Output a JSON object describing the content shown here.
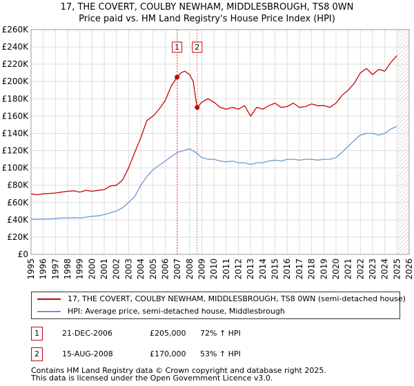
{
  "title": {
    "line1": "17, THE COVERT, COULBY NEWHAM, MIDDLESBROUGH, TS8 0WN",
    "line2": "Price paid vs. HM Land Registry's House Price Index (HPI)"
  },
  "chart_data": {
    "type": "line",
    "title": "17, THE COVERT, COULBY NEWHAM, MIDDLESBROUGH, TS8 0WN — Price paid vs. HM Land Registry's House Price Index (HPI)",
    "xlabel": "",
    "ylabel": "",
    "xlim": [
      1995,
      2026
    ],
    "ylim": [
      0,
      260000
    ],
    "x_ticks": [
      1995,
      1996,
      1997,
      1998,
      1999,
      2000,
      2001,
      2002,
      2003,
      2004,
      2005,
      2006,
      2007,
      2008,
      2009,
      2010,
      2011,
      2012,
      2013,
      2014,
      2015,
      2016,
      2017,
      2018,
      2019,
      2020,
      2021,
      2022,
      2023,
      2024,
      2025,
      2026
    ],
    "y_ticks": [
      0,
      20000,
      40000,
      60000,
      80000,
      100000,
      120000,
      140000,
      160000,
      180000,
      200000,
      220000,
      240000,
      260000
    ],
    "y_tick_labels": [
      "£0",
      "£20K",
      "£40K",
      "£60K",
      "£80K",
      "£100K",
      "£120K",
      "£140K",
      "£160K",
      "£180K",
      "£200K",
      "£220K",
      "£240K",
      "£260K"
    ],
    "grid": true,
    "future_shading_from": 2025.0,
    "series": [
      {
        "name": "17, THE COVERT, COULBY NEWHAM, MIDDLESBROUGH, TS8 0WN (semi-detached house)",
        "color": "#cc0000",
        "x": [
          1995.0,
          1995.5,
          1996.0,
          1996.5,
          1997.0,
          1997.5,
          1998.0,
          1998.5,
          1999.0,
          1999.5,
          2000.0,
          2000.5,
          2001.0,
          2001.5,
          2002.0,
          2002.5,
          2003.0,
          2003.5,
          2004.0,
          2004.5,
          2005.0,
          2005.5,
          2006.0,
          2006.5,
          2006.97,
          2007.3,
          2007.6,
          2008.0,
          2008.3,
          2008.5,
          2008.62,
          2009.0,
          2009.5,
          2010.0,
          2010.5,
          2011.0,
          2011.5,
          2012.0,
          2012.5,
          2013.0,
          2013.5,
          2014.0,
          2014.5,
          2015.0,
          2015.5,
          2016.0,
          2016.5,
          2017.0,
          2017.5,
          2018.0,
          2018.5,
          2019.0,
          2019.5,
          2020.0,
          2020.5,
          2021.0,
          2021.5,
          2022.0,
          2022.5,
          2023.0,
          2023.5,
          2024.0,
          2024.5,
          2025.0
        ],
        "values": [
          70000,
          69000,
          70000,
          70500,
          71000,
          72000,
          73000,
          73500,
          72000,
          74000,
          73000,
          74000,
          75000,
          79000,
          80000,
          86000,
          100000,
          118000,
          135000,
          155000,
          160000,
          168000,
          178000,
          195000,
          205000,
          210000,
          212000,
          208000,
          200000,
          180000,
          170000,
          176000,
          180000,
          176000,
          170000,
          168000,
          170000,
          168000,
          172000,
          160000,
          170000,
          168000,
          172000,
          175000,
          170000,
          171000,
          175000,
          170000,
          171000,
          174000,
          172000,
          172000,
          170000,
          175000,
          184000,
          190000,
          198000,
          210000,
          215000,
          208000,
          214000,
          212000,
          222000,
          230000
        ]
      },
      {
        "name": "HPI: Average price, semi-detached house, Middlesbrough",
        "color": "#6a98cf",
        "x": [
          1995.0,
          1995.5,
          1996.0,
          1996.5,
          1997.0,
          1997.5,
          1998.0,
          1998.5,
          1999.0,
          1999.5,
          2000.0,
          2000.5,
          2001.0,
          2001.5,
          2002.0,
          2002.5,
          2003.0,
          2003.5,
          2004.0,
          2004.5,
          2005.0,
          2005.5,
          2006.0,
          2006.5,
          2007.0,
          2007.5,
          2008.0,
          2008.5,
          2009.0,
          2009.5,
          2010.0,
          2010.5,
          2011.0,
          2011.5,
          2012.0,
          2012.5,
          2013.0,
          2013.5,
          2014.0,
          2014.5,
          2015.0,
          2015.5,
          2016.0,
          2016.5,
          2017.0,
          2017.5,
          2018.0,
          2018.5,
          2019.0,
          2019.5,
          2020.0,
          2020.5,
          2021.0,
          2021.5,
          2022.0,
          2022.5,
          2023.0,
          2023.5,
          2024.0,
          2024.5,
          2025.0
        ],
        "values": [
          41000,
          40500,
          41000,
          41000,
          41500,
          42000,
          42000,
          42500,
          42000,
          43000,
          44000,
          44500,
          46000,
          48000,
          50000,
          54000,
          60000,
          67000,
          80000,
          90000,
          98000,
          103000,
          108000,
          113000,
          118000,
          120000,
          122000,
          118000,
          112000,
          110000,
          110000,
          108000,
          107000,
          108000,
          106000,
          106000,
          104000,
          106000,
          106000,
          108000,
          109000,
          108000,
          110000,
          110000,
          109000,
          110000,
          110000,
          109000,
          110000,
          110000,
          112000,
          118000,
          125000,
          132000,
          138000,
          140000,
          140000,
          138000,
          140000,
          145000,
          148000
        ]
      }
    ],
    "sales": [
      {
        "label": "1",
        "x": 2006.97,
        "price": 205000
      },
      {
        "label": "2",
        "x": 2008.62,
        "price": 170000
      }
    ]
  },
  "legend": {
    "series1": "17, THE COVERT, COULBY NEWHAM, MIDDLESBROUGH, TS8 0WN (semi-detached house)",
    "series2": "HPI: Average price, semi-detached house, Middlesbrough",
    "series1_color": "#cc0000",
    "series2_color": "#6a98cf"
  },
  "sales_table": [
    {
      "marker": "1",
      "date": "21-DEC-2006",
      "price": "£205,000",
      "hpi": "72% ↑ HPI"
    },
    {
      "marker": "2",
      "date": "15-AUG-2008",
      "price": "£170,000",
      "hpi": "53% ↑ HPI"
    }
  ],
  "footer": {
    "line1": "Contains HM Land Registry data © Crown copyright and database right 2025.",
    "line2": "This data is licensed under the Open Government Licence v3.0."
  }
}
